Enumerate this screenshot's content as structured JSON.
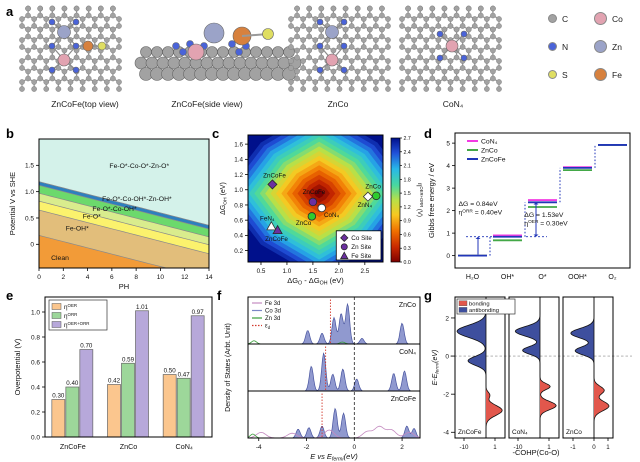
{
  "figure": {
    "panels": {
      "a": "a",
      "b": "b",
      "c": "c",
      "d": "d",
      "e": "e",
      "f": "f",
      "g": "g"
    }
  },
  "panel_a": {
    "structures": [
      {
        "caption": "ZnCoFe(top view)"
      },
      {
        "caption": "ZnCoFe(side view)"
      },
      {
        "caption": "ZnCo"
      },
      {
        "caption": "CoN₄"
      }
    ],
    "legend": [
      {
        "label": "C",
        "color": "#A2A2A2"
      },
      {
        "label": "Co",
        "color": "#E2A3B1"
      },
      {
        "label": "N",
        "color": "#4A63D8"
      },
      {
        "label": "Zn",
        "color": "#9BA3C8"
      },
      {
        "label": "S",
        "color": "#DFDE62"
      },
      {
        "label": "Fe",
        "color": "#D7813E"
      }
    ]
  },
  "chart_data": [
    {
      "id": "pourbaix",
      "panel": "b",
      "type": "area",
      "xlabel": "PH",
      "ylabel": "Potential V vs SHE",
      "xlim": [
        0,
        14
      ],
      "ylim": [
        -0.45,
        2.0
      ],
      "xticks": [
        0,
        2,
        4,
        6,
        8,
        10,
        12,
        14
      ],
      "yticks": [
        0,
        0.5,
        1.0,
        1.5
      ],
      "slope_v_per_ph": -0.0592,
      "regions": [
        {
          "label": "Clean",
          "top_intercept_v": 0.17,
          "color": "#F29B38",
          "label_x": 1.0,
          "label_y": -0.3
        },
        {
          "label": "Fe-OH*",
          "top_intercept_v": 0.65,
          "color": "#E2BE7B",
          "label_x": 2.2,
          "label_y": 0.26
        },
        {
          "label": "Fe-O*",
          "top_intercept_v": 0.82,
          "color": "#FBF26D",
          "label_x": 3.6,
          "label_y": 0.49
        },
        {
          "label": "Fe-O*-Co-OH*",
          "top_intercept_v": 0.97,
          "color": "#D9EC8D",
          "label_x": 4.4,
          "label_y": 0.63
        },
        {
          "label": "Fe-O*-Co-OH*-Zn-OH*",
          "top_intercept_v": 1.12,
          "color": "#6CD96C",
          "label_x": 5.2,
          "label_y": 0.82
        },
        {
          "label": "",
          "top_intercept_v": 1.19,
          "color": "#2E7FBE",
          "label_x": 0,
          "label_y": 0
        },
        {
          "label": "Fe-O*-Co-O*-Zn-O*",
          "top_intercept_v": null,
          "color": "#D4F2EA",
          "label_x": 5.8,
          "label_y": 1.45
        }
      ]
    },
    {
      "id": "volcano",
      "panel": "c",
      "type": "heatmap",
      "xlabel": "ΔG_{O} - ΔG_{OH} (eV)",
      "ylabel": "ΔG_{OH} (eV)",
      "xlim": [
        0.25,
        2.85
      ],
      "ylim": [
        0.05,
        1.72
      ],
      "xticks": [
        0.5,
        1.0,
        1.5,
        2.0,
        2.5
      ],
      "yticks": [
        0.2,
        0.4,
        0.6,
        0.8,
        1.0,
        1.2,
        1.4,
        1.6
      ],
      "volcano_center": {
        "x": 1.62,
        "y": 0.95
      },
      "colorbar": {
        "label": "η^{OER+ORR} (V)",
        "ticks": [
          0.0,
          0.3,
          0.6,
          0.9,
          1.2,
          1.5,
          1.8,
          2.1,
          2.4,
          2.7
        ]
      },
      "points": [
        {
          "label": "ZnCoFe",
          "site": "Co",
          "marker": "diamond",
          "fill": "#6B2FA0",
          "x": 0.72,
          "y": 1.07,
          "lx": 0.76,
          "ly": 1.19
        },
        {
          "label": "ZnCoFe",
          "site": "Zn",
          "marker": "circle",
          "fill": "#6B2FA0",
          "x": 1.5,
          "y": 0.84,
          "lx": 1.52,
          "ly": 0.97
        },
        {
          "label": "CoN₄",
          "marker": "circle",
          "fill": "#FFFFFF",
          "x": 1.67,
          "y": 0.76,
          "lx": 1.86,
          "ly": 0.67
        },
        {
          "label": "ZnCo",
          "marker": "circle",
          "fill": "#2ECC2E",
          "x": 1.48,
          "y": 0.65,
          "lx": 1.32,
          "ly": 0.56
        },
        {
          "label": "FeN₄",
          "marker": "triangle",
          "fill": "#FFFFFF",
          "x": 0.7,
          "y": 0.52,
          "lx": 0.62,
          "ly": 0.62
        },
        {
          "label": "ZnCoFe",
          "site": "Fe",
          "marker": "triangle",
          "fill": "#6B2FA0",
          "x": 0.82,
          "y": 0.47,
          "lx": 0.8,
          "ly": 0.35
        },
        {
          "label": "ZnN₄",
          "marker": "diamond",
          "fill": "#FFFFFF",
          "x": 2.56,
          "y": 0.91,
          "lx": 2.5,
          "ly": 0.8
        },
        {
          "label": "ZnCo",
          "marker": "circle",
          "fill": "#2ECC2E",
          "x": 2.72,
          "y": 0.92,
          "lx": 2.66,
          "ly": 1.04
        }
      ],
      "legend": [
        {
          "label": "Co Site",
          "marker": "diamond"
        },
        {
          "label": "Zn Site",
          "marker": "circle"
        },
        {
          "label": "Fe Site",
          "marker": "triangle"
        }
      ],
      "legend_color": "#6B2FA0"
    },
    {
      "id": "gibbs",
      "panel": "d",
      "type": "line",
      "ylabel": "Gibbs free energy / eV",
      "categories": [
        "H₂O",
        "OH*",
        "O*",
        "OOH*",
        "O₂"
      ],
      "ylim": [
        -0.55,
        5.45
      ],
      "yticks": [
        0,
        1,
        2,
        3,
        4,
        5
      ],
      "series": [
        {
          "name": "CoN₄",
          "color": "#F23BE3",
          "values": [
            0,
            0.9,
            2.47,
            3.93,
            4.92
          ]
        },
        {
          "name": "ZnCo",
          "color": "#43A847",
          "values": [
            0,
            0.68,
            2.16,
            3.8,
            4.92
          ]
        },
        {
          "name": "ZnCoFe",
          "color": "#2136B8",
          "values": [
            0,
            0.84,
            2.37,
            3.9,
            4.92
          ]
        }
      ],
      "annotations": [
        {
          "text": "ΔG = 0.84eV",
          "x": 0.1,
          "y": 2.2
        },
        {
          "text": "η^{ORR} = 0.40eV",
          "x": 0.1,
          "y": 1.83
        },
        {
          "text": "ΔG = 1.53eV",
          "x": 1.98,
          "y": 1.72
        },
        {
          "text": "η^{OER} = 0.30eV",
          "x": 1.98,
          "y": 1.35
        }
      ]
    },
    {
      "id": "overpotential",
      "panel": "e",
      "type": "bar",
      "ylabel": "Overpotential (V)",
      "categories": [
        "ZnCoFe",
        "ZnCo",
        "CoN₄"
      ],
      "ylim": [
        0,
        1.12
      ],
      "yticks": [
        0.0,
        0.2,
        0.4,
        0.6,
        0.8,
        1.0
      ],
      "series": [
        {
          "name": "η^{OER}",
          "color": "#FBC68E",
          "values": [
            0.3,
            0.42,
            0.5
          ]
        },
        {
          "name": "η^{ORR}",
          "color": "#9DD79A",
          "values": [
            0.4,
            0.59,
            0.47
          ]
        },
        {
          "name": "η^{OER+ORR}",
          "color": "#B7A8DA",
          "values": [
            0.7,
            1.01,
            0.97
          ]
        }
      ]
    },
    {
      "id": "dos",
      "panel": "f",
      "type": "area",
      "xlabel": "E vs E_{fermi}(eV)",
      "ylabel": "Density of States (Arbt. Unit)",
      "xlim": [
        -4.45,
        2.75
      ],
      "xticks": [
        -4,
        -2,
        0,
        2
      ],
      "fermi_x": 0,
      "legend": [
        {
          "label": "Fe 3d",
          "color": "#C48BC0"
        },
        {
          "label": "Co 3d",
          "color": "#7B87C5"
        },
        {
          "label": "Zn 3d",
          "color": "#3B9E3B"
        },
        {
          "label": "ε_{d}",
          "color": "#D23A2E",
          "style": "dotted"
        }
      ],
      "subplots": [
        {
          "title": "ZnCo",
          "epsilon_d": -1.0,
          "co3d": [
            [
              -1.95,
              0.34
            ],
            [
              -1.35,
              0.27
            ],
            [
              -0.85,
              0.66
            ],
            [
              -0.55,
              0.76
            ],
            [
              -0.28,
              1.0
            ],
            [
              0.32,
              0.14
            ],
            [
              2.0,
              0.52
            ]
          ],
          "fe3d": [],
          "zn3d": [
            [
              -4.2,
              0.08
            ],
            [
              -0.5,
              0.05
            ]
          ]
        },
        {
          "title": "CoN₄",
          "epsilon_d": -1.2,
          "co3d": [
            [
              -1.8,
              0.62
            ],
            [
              -1.28,
              0.95
            ],
            [
              -0.9,
              0.42
            ],
            [
              -0.48,
              0.55
            ],
            [
              0.1,
              0.3
            ],
            [
              1.65,
              0.44
            ],
            [
              2.1,
              0.5
            ]
          ],
          "fe3d": [],
          "zn3d": []
        },
        {
          "title": "ZnCoFe",
          "epsilon_d": -1.35,
          "co3d": [
            [
              -2.35,
              0.22
            ],
            [
              -1.9,
              0.26
            ],
            [
              -1.35,
              0.3
            ],
            [
              -0.8,
              0.74
            ],
            [
              -0.45,
              0.62
            ],
            [
              2.2,
              0.3
            ],
            [
              2.5,
              0.24
            ]
          ],
          "fe3d": [
            [
              -3.9,
              0.14
            ],
            [
              -2.6,
              0.12
            ],
            [
              -1.05,
              0.2
            ],
            [
              0.55,
              0.16
            ],
            [
              1.05,
              0.28
            ],
            [
              1.55,
              0.2
            ],
            [
              2.3,
              0.14
            ]
          ],
          "zn3d": [
            [
              -4.25,
              0.1
            ]
          ]
        }
      ]
    },
    {
      "id": "cohp",
      "panel": "g",
      "type": "area",
      "xlabel": "-COHP(Co-O)",
      "ylabel": "E-E_{fermi}(eV)",
      "ylim": [
        -4.3,
        3.1
      ],
      "yticks": [
        -4,
        -2,
        0,
        2
      ],
      "legend": [
        {
          "label": "bonding",
          "color": "#E2574C"
        },
        {
          "label": "antibonding",
          "color": "#3E4F9E"
        }
      ],
      "subplots": [
        {
          "title": "ZnCoFe",
          "xticks": [
            "-10",
            "1"
          ],
          "antibonding": [
            [
              1.3,
              1.0,
              0.45
            ],
            [
              -0.25,
              0.62,
              0.33
            ]
          ],
          "bonding": [
            [
              -2.85,
              0.95,
              0.38
            ],
            [
              -2.05,
              0.22,
              0.22
            ]
          ]
        },
        {
          "title": "CoN₄",
          "xticks": [
            "-10",
            "1"
          ],
          "antibonding": [
            [
              1.3,
              0.85,
              0.35
            ],
            [
              0.3,
              0.6,
              0.28
            ]
          ],
          "bonding": [
            [
              -1.6,
              0.6,
              0.22
            ],
            [
              -2.6,
              0.95,
              0.3
            ]
          ]
        },
        {
          "title": "ZnCo",
          "xticks": [
            "-1",
            "0",
            "1"
          ],
          "antibonding": [
            [
              1.2,
              0.8,
              0.35
            ],
            [
              0.28,
              0.65,
              0.3
            ]
          ],
          "bonding": [
            [
              -1.8,
              0.6,
              0.3
            ],
            [
              -2.62,
              0.88,
              0.35
            ]
          ]
        }
      ]
    }
  ]
}
